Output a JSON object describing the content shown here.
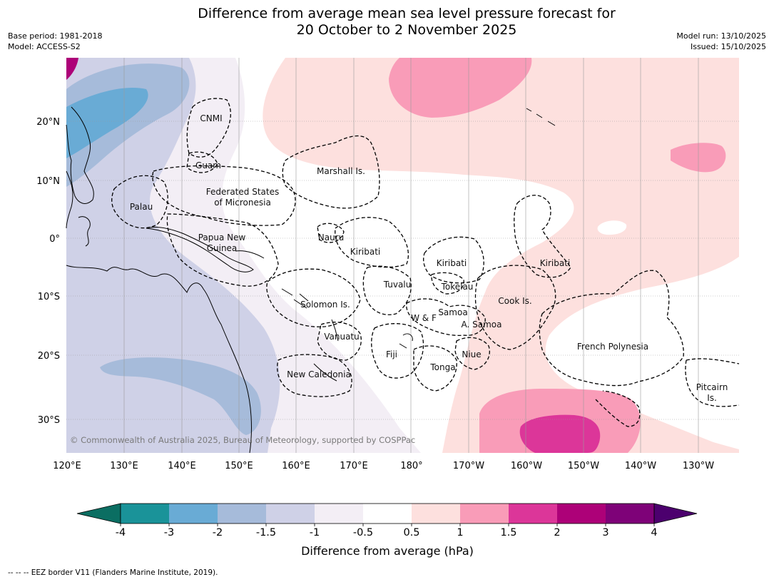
{
  "header": {
    "title_line1": "Difference from average mean sea level pressure forecast for",
    "title_line2": "20 October to 2 November 2025",
    "base_period": "Base period: 1981-2018",
    "model": "Model: ACCESS-S2",
    "model_run": "Model run: 13/10/2025",
    "issued": "Issued: 15/10/2025"
  },
  "map": {
    "lat_ticks": [
      "20°N",
      "10°N",
      "0°",
      "10°S",
      "20°S",
      "30°S"
    ],
    "lon_ticks": [
      "120°E",
      "130°E",
      "140°E",
      "150°E",
      "160°E",
      "170°E",
      "180°",
      "170°W",
      "160°W",
      "150°W",
      "140°W",
      "130°W"
    ],
    "region_labels": {
      "cnmi": "CNMI",
      "guam": "Guam",
      "marshall": "Marshall Is.",
      "fsm_line1": "Federated States",
      "fsm_line2": "of Micronesia",
      "palau": "Palau",
      "png_line1": "Papua New",
      "png_line2": "Guinea",
      "nauru": "Nauru",
      "kiribati_west": "Kiribati",
      "kiribati_central": "Kiribati",
      "kiribati_east": "Kiribati",
      "tuvalu": "Tuvalu",
      "tokelau": "Tokelau",
      "solomon": "Solomon Is.",
      "wallis_futuna": "W & F",
      "samoa": "Samoa",
      "american_samoa": "A. Samoa",
      "cook": "Cook Is.",
      "vanuatu": "Vanuatu",
      "fiji": "Fiji",
      "niue": "Niue",
      "french_polynesia": "French Polynesia",
      "tonga": "Tonga",
      "new_caledonia": "New Caledonia",
      "pitcairn_line1": "Pitcairn",
      "pitcairn_line2": "Is."
    },
    "copyright": "© Commonwealth of Australia 2025, Bureau of Meteorology, supported by COSPPac"
  },
  "colorbar": {
    "title": "Difference from average (hPa)",
    "tick_labels": [
      "-4",
      "-3",
      "-2",
      "-1.5",
      "-1",
      "-0.5",
      "0.5",
      "1",
      "1.5",
      "2",
      "3",
      "4"
    ],
    "colors": {
      "below_min": "#0b6e62",
      "c1": "#1a9399",
      "c2": "#69abd5",
      "c3": "#a6bbda",
      "c4": "#cfd1e7",
      "c5": "#f3eef5",
      "c6": "#ffffff",
      "c7": "#fde0de",
      "c8": "#f99cb8",
      "c9": "#dc3699",
      "c10": "#ad0178",
      "c11": "#7e0278",
      "above_max": "#4c006e"
    }
  },
  "footer": {
    "eez_note": "--  --  -- EEZ border V11 (Flanders Marine Institute, 2019)."
  }
}
